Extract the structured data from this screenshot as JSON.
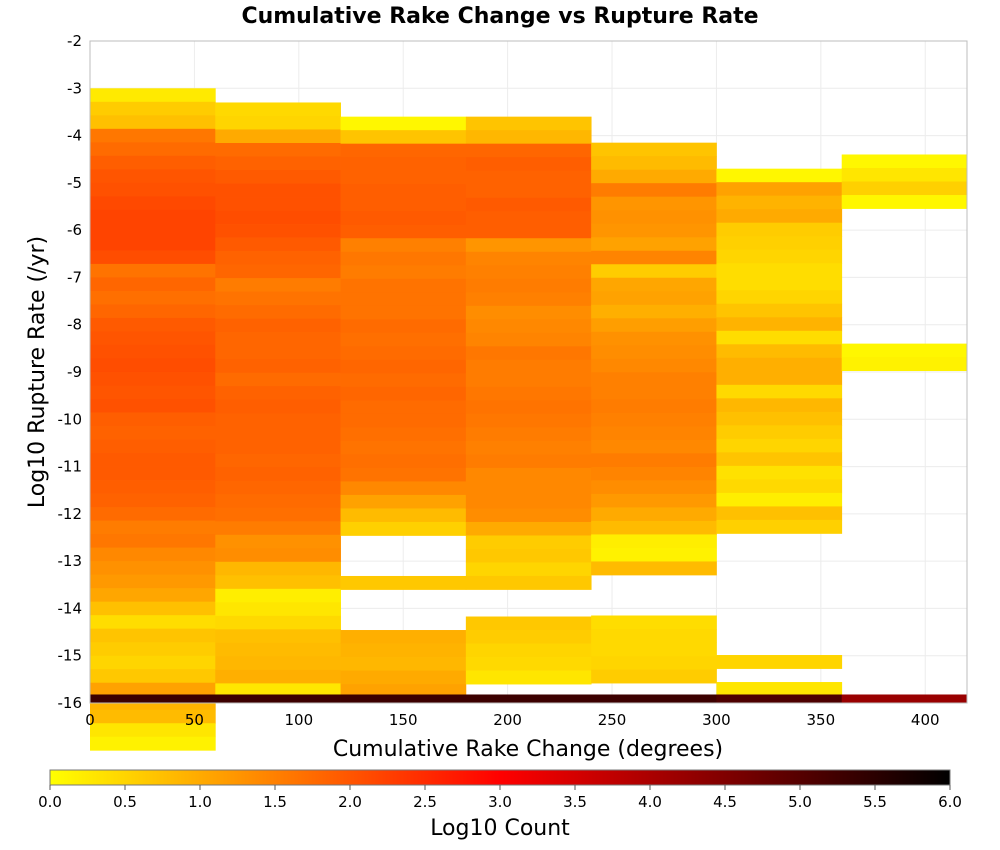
{
  "chart_data": {
    "type": "heatmap",
    "title": "Cumulative Rake Change vs Rupture Rate",
    "xlabel": "Cumulative Rake Change (degrees)",
    "ylabel": "Log10 Rupture Rate (/yr)",
    "xlim": [
      0,
      420
    ],
    "ylim": [
      -16,
      -2
    ],
    "xticks": [
      0,
      50,
      100,
      150,
      200,
      250,
      300,
      350,
      400
    ],
    "yticks": [
      -2,
      -3,
      -4,
      -5,
      -6,
      -7,
      -8,
      -9,
      -10,
      -11,
      -12,
      -13,
      -14,
      -15,
      -16
    ],
    "grid": true,
    "x_bin_width": 60,
    "y_bin_height": 0.2857,
    "colorbar": {
      "label": "Log10 Count",
      "range": [
        0,
        6
      ],
      "ticks": [
        "0.0",
        "0.5",
        "1.0",
        "1.5",
        "2.0",
        "2.5",
        "3.0",
        "3.5",
        "4.0",
        "4.5",
        "5.0",
        "5.5",
        "6.0"
      ],
      "stops": [
        {
          "value": 0.0,
          "color": "#ffff00"
        },
        {
          "value": 1.5,
          "color": "#ff8000"
        },
        {
          "value": 3.0,
          "color": "#ff0000"
        },
        {
          "value": 4.5,
          "color": "#800000"
        },
        {
          "value": 6.0,
          "color": "#000000"
        }
      ]
    },
    "summary_bar": {
      "y_range": [
        -16,
        -15.82
      ],
      "values": [
        5.3,
        5.3,
        5.3,
        5.3,
        5.3,
        5.1,
        4.2
      ]
    },
    "columns": [
      {
        "x_start": 0,
        "y_top": -3.0,
        "values": [
          0.25,
          0.6,
          0.75,
          1.6,
          1.75,
          1.9,
          2.0,
          2.05,
          2.15,
          2.2,
          2.2,
          2.2,
          2.1,
          1.65,
          1.8,
          1.7,
          1.8,
          1.95,
          2.0,
          2.05,
          2.1,
          2.05,
          2.0,
          2.05,
          1.9,
          1.85,
          1.9,
          1.95,
          1.95,
          1.9,
          1.85,
          1.75,
          1.55,
          1.6,
          1.4,
          1.3,
          1.2,
          1.05,
          0.75,
          0.4,
          0.7,
          0.6,
          0.5,
          0.65,
          1.1,
          0.9,
          0.8,
          0.3,
          0.15
        ]
      },
      {
        "x_start": 60,
        "y_top": -3.3,
        "values": [
          0.45,
          0.5,
          1.0,
          1.75,
          1.85,
          1.95,
          2.05,
          2.05,
          2.1,
          2.05,
          1.95,
          1.85,
          1.8,
          1.55,
          1.65,
          1.75,
          1.85,
          1.8,
          1.8,
          1.85,
          1.75,
          1.85,
          1.9,
          1.85,
          1.85,
          1.85,
          1.8,
          1.85,
          1.8,
          1.75,
          1.7,
          1.55,
          1.3,
          1.35,
          0.85,
          0.75,
          0.2,
          0.3,
          0.45,
          0.75,
          0.8,
          0.85,
          0.95,
          0.3
        ]
      },
      {
        "x_start": 120,
        "y_top": -3.6,
        "values": [
          0.1,
          0.7,
          1.8,
          1.85,
          1.85,
          1.9,
          1.9,
          1.95,
          1.9,
          1.5,
          1.6,
          1.55,
          1.65,
          1.65,
          1.65,
          1.75,
          1.7,
          1.75,
          1.8,
          1.75,
          1.8,
          1.75,
          1.75,
          1.7,
          1.65,
          1.7,
          1.65,
          1.4,
          1.1,
          0.8,
          0.55,
          null,
          null,
          null,
          0.65,
          null,
          null,
          null,
          0.95,
          0.9,
          0.85,
          1.0,
          1.1
        ]
      },
      {
        "x_start": 180,
        "y_top": -3.6,
        "values": [
          0.7,
          0.85,
          1.8,
          1.9,
          1.85,
          1.85,
          1.95,
          1.9,
          1.9,
          1.25,
          1.45,
          1.5,
          1.55,
          1.5,
          1.35,
          1.4,
          1.45,
          1.6,
          1.55,
          1.55,
          1.6,
          1.65,
          1.6,
          1.55,
          1.5,
          1.55,
          1.4,
          1.4,
          1.4,
          1.35,
          1.0,
          0.6,
          0.65,
          0.5,
          0.65,
          null,
          null,
          0.65,
          0.6,
          0.5,
          0.45,
          0.3
        ]
      },
      {
        "x_start": 240,
        "y_top": -4.15,
        "values": [
          0.7,
          0.8,
          1.0,
          1.55,
          1.25,
          1.3,
          1.25,
          1.1,
          1.45,
          0.6,
          1.05,
          1.1,
          0.95,
          1.15,
          1.3,
          1.35,
          1.4,
          1.5,
          1.5,
          1.55,
          1.5,
          1.45,
          1.4,
          1.55,
          1.45,
          1.35,
          1.2,
          1.0,
          0.8,
          0.2,
          0.15,
          0.8,
          null,
          null,
          null,
          0.4,
          0.45,
          0.45,
          0.5,
          0.6
        ]
      },
      {
        "x_start": 300,
        "y_top": -4.7,
        "values": [
          0.1,
          1.1,
          0.9,
          1.0,
          0.6,
          0.55,
          0.5,
          0.4,
          0.4,
          0.5,
          0.7,
          0.9,
          0.4,
          0.8,
          0.95,
          0.95,
          0.45,
          0.85,
          0.75,
          0.6,
          0.5,
          0.7,
          0.35,
          0.45,
          0.2,
          0.75,
          0.55,
          null,
          null,
          null,
          null,
          null,
          null,
          null,
          null,
          null,
          0.5,
          null,
          0.3
        ]
      },
      {
        "x_start": 360,
        "y_top": -4.4,
        "values": [
          0.1,
          0.3,
          0.55,
          0.1,
          null,
          null,
          null,
          null,
          null,
          null,
          null,
          null,
          null,
          null,
          0.1,
          0.15
        ]
      }
    ]
  }
}
